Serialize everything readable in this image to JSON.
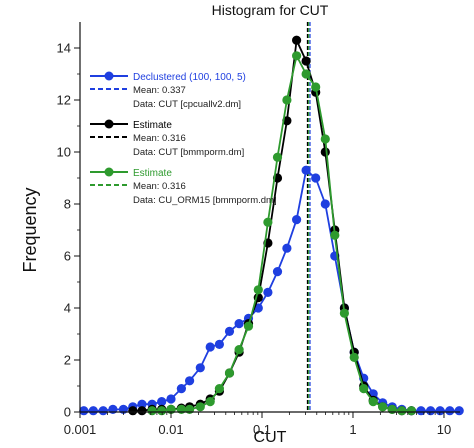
{
  "chart_data": {
    "type": "line",
    "title": "Histogram for CUT",
    "xlabel": "CUT",
    "ylabel": "Frequency",
    "x_scale": "log",
    "xlim": [
      0.001,
      15
    ],
    "ylim": [
      0,
      15
    ],
    "x_ticks": [
      {
        "value": 0.001,
        "label": "0.001"
      },
      {
        "value": 0.01,
        "label": "0.01"
      },
      {
        "value": 0.1,
        "label": "0.1"
      },
      {
        "value": 1,
        "label": "1"
      },
      {
        "value": 10,
        "label": "10"
      }
    ],
    "y_ticks": [
      {
        "value": 0,
        "label": "0"
      },
      {
        "value": 2,
        "label": "2"
      },
      {
        "value": 4,
        "label": "4"
      },
      {
        "value": 6,
        "label": "6"
      },
      {
        "value": 8,
        "label": "8"
      },
      {
        "value": 10,
        "label": "10"
      },
      {
        "value": 12,
        "label": "12"
      },
      {
        "value": 14,
        "label": "14"
      }
    ],
    "legend_position": "top-left",
    "series": [
      {
        "name": "Declustered (100, 100, 5)",
        "color": "#1f3fe0",
        "mean_label": "Mean: 0.337",
        "data_label": "Data: CUT [cpcuallv2.dm]",
        "mean": 0.337,
        "x": [
          0.0011,
          0.0014,
          0.0018,
          0.0023,
          0.003,
          0.0038,
          0.0048,
          0.0062,
          0.0079,
          0.01,
          0.013,
          0.016,
          0.021,
          0.027,
          0.034,
          0.044,
          0.056,
          0.071,
          0.091,
          0.116,
          0.148,
          0.188,
          0.24,
          0.305,
          0.389,
          0.496,
          0.632,
          0.805,
          1.03,
          1.31,
          1.67,
          2.12,
          2.7,
          3.44,
          4.39,
          5.59,
          7.12,
          9.07,
          11.6,
          14.7
        ],
        "y": [
          0.05,
          0.05,
          0.05,
          0.1,
          0.1,
          0.2,
          0.3,
          0.3,
          0.4,
          0.5,
          0.9,
          1.2,
          1.7,
          2.5,
          2.6,
          3.1,
          3.4,
          3.6,
          4.0,
          4.6,
          5.4,
          6.3,
          7.4,
          9.3,
          9.0,
          8.0,
          6.0,
          4.0,
          2.3,
          1.3,
          0.7,
          0.35,
          0.2,
          0.1,
          0.05,
          0.05,
          0.05,
          0.05,
          0.05,
          0.05
        ]
      },
      {
        "name": "Estimate",
        "color": "#000000",
        "mean_label": "Mean: 0.316",
        "data_label": "Data: CUT [bmmporm.dm]",
        "mean": 0.316,
        "x": [
          0.0038,
          0.0048,
          0.0062,
          0.0079,
          0.01,
          0.013,
          0.016,
          0.021,
          0.027,
          0.034,
          0.044,
          0.056,
          0.071,
          0.091,
          0.116,
          0.148,
          0.188,
          0.24,
          0.305,
          0.389,
          0.496,
          0.632,
          0.805,
          1.03,
          1.31,
          1.67,
          2.12,
          2.7,
          3.44,
          4.39
        ],
        "y": [
          0.05,
          0.05,
          0.1,
          0.1,
          0.1,
          0.15,
          0.2,
          0.3,
          0.5,
          0.8,
          1.5,
          2.3,
          3.4,
          4.4,
          6.5,
          9.0,
          11.2,
          14.3,
          13.5,
          12.3,
          10.0,
          7.0,
          4.0,
          2.3,
          1.0,
          0.45,
          0.2,
          0.1,
          0.05,
          0.05
        ]
      },
      {
        "name": "Estimate",
        "color": "#2e9a2e",
        "mean_label": "Mean: 0.316",
        "data_label": "Data: CU_ORM15 [bmmporm.dm]",
        "mean": 0.316,
        "x": [
          0.0062,
          0.0079,
          0.01,
          0.013,
          0.016,
          0.021,
          0.027,
          0.034,
          0.044,
          0.056,
          0.071,
          0.091,
          0.116,
          0.148,
          0.188,
          0.24,
          0.305,
          0.389,
          0.496,
          0.632,
          0.805,
          1.03,
          1.31,
          1.67,
          2.12,
          2.7,
          3.44,
          4.39
        ],
        "y": [
          0.05,
          0.05,
          0.1,
          0.1,
          0.1,
          0.2,
          0.4,
          0.9,
          1.5,
          2.4,
          3.3,
          4.7,
          7.3,
          9.8,
          12.0,
          13.7,
          13.0,
          12.5,
          10.5,
          6.8,
          3.8,
          2.1,
          0.9,
          0.4,
          0.2,
          0.1,
          0.05,
          0.05
        ]
      }
    ]
  }
}
